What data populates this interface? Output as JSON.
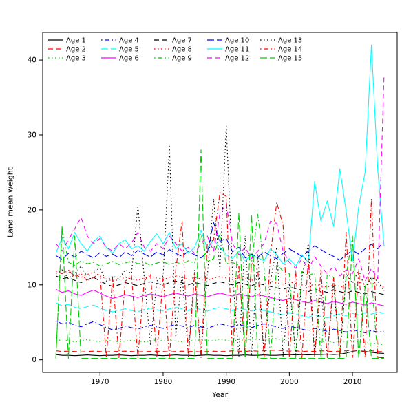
{
  "figure": {
    "background": "#ffffff"
  },
  "chart_data": {
    "type": "line",
    "title": "",
    "xlabel": "Year",
    "ylabel": "Land mean weight",
    "xlim": [
      1963,
      2015
    ],
    "ylim": [
      0,
      42
    ],
    "xticks": [
      1970,
      1980,
      1990,
      2000,
      2010
    ],
    "yticks": [
      0,
      10,
      20,
      30,
      40
    ],
    "grid": false,
    "legend": {
      "position": "top-left",
      "columns": 5,
      "rows": 3,
      "frame": false
    },
    "palette": {
      "black": "#000000",
      "red": "#FF0000",
      "green": "#00CD00",
      "blue": "#0000FF",
      "cyan": "#00FFFF",
      "magenta": "#FF00FF"
    },
    "x": [
      1963,
      1964,
      1965,
      1966,
      1967,
      1968,
      1969,
      1970,
      1971,
      1972,
      1973,
      1974,
      1975,
      1976,
      1977,
      1978,
      1979,
      1980,
      1981,
      1982,
      1983,
      1984,
      1985,
      1986,
      1987,
      1988,
      1989,
      1990,
      1991,
      1992,
      1993,
      1994,
      1995,
      1996,
      1997,
      1998,
      1999,
      2000,
      2001,
      2002,
      2003,
      2004,
      2005,
      2006,
      2007,
      2008,
      2009,
      2010,
      2011,
      2012,
      2013,
      2014,
      2015
    ],
    "series": [
      {
        "name": "Age 1",
        "color": "#000000",
        "style": "solid",
        "values": [
          0.7,
          0.6,
          0.6,
          0.55,
          0.6,
          0.65,
          0.6,
          0.55,
          0.6,
          0.6,
          0.65,
          0.6,
          0.55,
          0.6,
          0.6,
          0.65,
          0.6,
          0.55,
          0.6,
          0.65,
          0.6,
          0.6,
          0.55,
          0.6,
          0.65,
          0.6,
          0.6,
          0.55,
          0.6,
          0.6,
          0.65,
          0.6,
          0.6,
          0.65,
          0.6,
          0.6,
          0.65,
          0.7,
          0.65,
          0.7,
          0.65,
          0.7,
          0.7,
          0.75,
          0.7,
          0.75,
          0.9,
          1.1,
          1.0,
          1.1,
          1.0,
          0.9,
          0.85
        ]
      },
      {
        "name": "Age 2",
        "color": "#FF0000",
        "style": "dashed",
        "values": [
          1.2,
          1.1,
          1.15,
          1.1,
          1.05,
          1.1,
          1.15,
          1.1,
          1.05,
          1.1,
          1.1,
          1.15,
          1.1,
          1.05,
          1.1,
          1.1,
          1.15,
          1.1,
          1.05,
          1.1,
          1.15,
          1.1,
          1.1,
          1.05,
          1.1,
          1.15,
          1.1,
          1.1,
          1.2,
          1.15,
          1.1,
          1.2,
          1.15,
          1.2,
          1.25,
          1.3,
          1.2,
          1.15,
          1.2,
          1.1,
          1.15,
          1.1,
          1.2,
          1.15,
          1.1,
          1.15,
          1.2,
          1.25,
          1.2,
          1.15,
          1.2,
          1.1,
          1.05
        ]
      },
      {
        "name": "Age 3",
        "color": "#00CD00",
        "style": "dotted",
        "values": [
          2.8,
          2.5,
          2.6,
          2.4,
          2.5,
          2.7,
          2.5,
          2.4,
          2.6,
          2.5,
          2.4,
          2.5,
          2.6,
          2.5,
          2.4,
          2.5,
          2.7,
          2.5,
          2.6,
          2.5,
          2.4,
          2.6,
          2.5,
          2.7,
          2.6,
          2.5,
          2.8,
          2.6,
          2.5,
          2.7,
          2.6,
          2.8,
          2.7,
          2.6,
          2.9,
          2.8,
          2.6,
          2.5,
          2.7,
          2.6,
          2.5,
          2.6,
          2.4,
          2.5,
          2.3,
          2.4,
          2.5,
          2.6,
          2.4,
          2.3,
          2.2,
          2.1,
          2.0
        ]
      },
      {
        "name": "Age 4",
        "color": "#0000FF",
        "style": "dashdot",
        "values": [
          5.2,
          4.8,
          5.0,
          4.6,
          4.4,
          4.8,
          5.1,
          4.7,
          4.3,
          4.0,
          4.2,
          4.5,
          4.3,
          4.1,
          4.4,
          4.6,
          4.4,
          4.2,
          4.5,
          4.7,
          4.5,
          4.3,
          4.6,
          4.4,
          4.2,
          4.5,
          4.8,
          4.6,
          4.4,
          4.7,
          4.5,
          4.3,
          4.6,
          4.8,
          4.6,
          4.4,
          4.2,
          4.5,
          4.3,
          4.1,
          3.9,
          4.2,
          4.0,
          3.8,
          4.1,
          3.9,
          3.7,
          4.0,
          3.8,
          3.6,
          3.9,
          3.7,
          3.8
        ]
      },
      {
        "name": "Age 5",
        "color": "#00FFFF",
        "style": "longdash",
        "values": [
          7.6,
          7.2,
          7.4,
          7.0,
          6.8,
          7.1,
          7.3,
          6.9,
          6.6,
          6.4,
          6.6,
          6.8,
          6.6,
          6.4,
          6.7,
          6.9,
          6.7,
          6.5,
          6.8,
          7.0,
          6.8,
          6.6,
          6.9,
          6.7,
          6.5,
          6.8,
          7.0,
          6.8,
          6.6,
          6.9,
          6.7,
          6.5,
          6.8,
          6.6,
          6.4,
          6.2,
          6.0,
          6.3,
          6.1,
          5.9,
          5.7,
          6.0,
          5.8,
          5.6,
          5.9,
          6.1,
          5.9,
          6.2,
          6.0,
          6.3,
          6.1,
          6.4,
          6.2
        ]
      },
      {
        "name": "Age 6",
        "color": "#FF00FF",
        "style": "solid",
        "values": [
          9.4,
          9.0,
          9.2,
          8.8,
          8.6,
          9.0,
          9.3,
          8.9,
          8.5,
          8.2,
          8.4,
          8.7,
          8.5,
          8.3,
          8.6,
          8.8,
          8.6,
          8.4,
          8.7,
          8.9,
          8.7,
          8.5,
          8.8,
          8.6,
          8.4,
          8.7,
          8.9,
          8.7,
          8.5,
          8.8,
          8.6,
          8.4,
          8.7,
          8.5,
          8.3,
          8.1,
          7.9,
          8.2,
          8.0,
          7.8,
          7.6,
          7.9,
          7.7,
          7.5,
          7.8,
          7.6,
          7.4,
          7.7,
          7.5,
          7.3,
          7.6,
          7.4,
          7.2
        ]
      },
      {
        "name": "Age 7",
        "color": "#000000",
        "style": "dashed",
        "values": [
          11.2,
          10.8,
          11.0,
          10.6,
          10.3,
          10.7,
          11.0,
          10.5,
          10.1,
          9.8,
          10.0,
          10.3,
          10.1,
          9.9,
          10.2,
          10.4,
          10.2,
          10.0,
          10.3,
          10.5,
          10.3,
          10.0,
          10.3,
          10.1,
          9.9,
          10.2,
          10.4,
          10.2,
          10.0,
          10.3,
          10.1,
          9.9,
          10.2,
          10.0,
          9.8,
          9.6,
          9.4,
          9.7,
          9.5,
          9.3,
          9.1,
          9.4,
          9.2,
          9.0,
          9.3,
          9.1,
          8.9,
          9.2,
          9.0,
          8.8,
          9.1,
          8.9,
          8.7
        ]
      },
      {
        "name": "Age 8",
        "color": "#FF0000",
        "style": "dotted",
        "values": [
          11.9,
          11.5,
          11.7,
          11.3,
          11.0,
          11.4,
          11.7,
          11.2,
          10.8,
          10.5,
          10.7,
          11.0,
          10.8,
          10.6,
          10.9,
          11.1,
          10.9,
          10.7,
          11.0,
          11.2,
          11.0,
          10.7,
          11.0,
          10.8,
          10.6,
          10.9,
          11.1,
          10.9,
          10.7,
          11.0,
          10.8,
          10.6,
          10.9,
          10.7,
          10.5,
          10.3,
          10.1,
          10.4,
          10.2,
          10.0,
          9.8,
          10.1,
          9.9,
          9.7,
          10.0,
          9.8,
          9.6,
          9.9,
          10.4,
          10.0,
          10.3,
          9.9,
          9.7
        ]
      },
      {
        "name": "Age 9",
        "color": "#00CD00",
        "style": "dashdot",
        "values": [
          0.3,
          17.5,
          13.0,
          12.6,
          13.2,
          12.8,
          13.0,
          12.5,
          12.8,
          13.1,
          12.7,
          12.9,
          13.2,
          12.8,
          13.0,
          12.6,
          12.9,
          13.1,
          12.7,
          13.0,
          12.8,
          13.2,
          12.9,
          16.8,
          13.1,
          13.5,
          16.9,
          12.8,
          13.0,
          12.6,
          0.3,
          13.0,
          19.4,
          12.2,
          0.3,
          12.8,
          11.8,
          11.5,
          0.3,
          11.8,
          11.2,
          11.6,
          0.3,
          11.4,
          11.0,
          0.3,
          11.2,
          16.5,
          0.3,
          9.8,
          11.0,
          0.3,
          0.3
        ]
      },
      {
        "name": "Age 10",
        "color": "#0000FF",
        "style": "longdash",
        "values": [
          13.9,
          13.4,
          14.2,
          13.7,
          14.5,
          14.0,
          13.6,
          14.3,
          13.8,
          14.1,
          13.6,
          14.4,
          13.9,
          14.6,
          14.1,
          13.7,
          14.4,
          14.0,
          14.7,
          14.2,
          13.8,
          14.5,
          14.0,
          13.6,
          14.3,
          18.3,
          15.8,
          16.2,
          14.4,
          15.0,
          13.6,
          14.1,
          13.7,
          14.4,
          13.9,
          13.5,
          14.2,
          14.8,
          14.3,
          13.8,
          14.5,
          15.2,
          14.7,
          14.2,
          13.8,
          13.3,
          14.0,
          14.6,
          14.1,
          14.8,
          15.4,
          14.8,
          15.8
        ]
      },
      {
        "name": "Age 11",
        "color": "#00FFFF",
        "style": "solid",
        "values": [
          14.2,
          16.3,
          14.8,
          17.0,
          15.5,
          14.5,
          15.8,
          16.5,
          15.0,
          14.2,
          15.5,
          16.0,
          14.8,
          15.2,
          14.5,
          15.8,
          16.8,
          15.5,
          17.0,
          14.8,
          15.5,
          14.2,
          15.0,
          17.3,
          14.8,
          16.0,
          15.0,
          14.0,
          13.5,
          14.5,
          13.2,
          14.0,
          13.6,
          13.2,
          14.8,
          14.0,
          12.8,
          13.5,
          12.5,
          14.0,
          13.0,
          23.8,
          18.5,
          21.2,
          17.8,
          25.5,
          19.8,
          13.2,
          20.5,
          25.0,
          42.0,
          25.3,
          15.2
        ]
      },
      {
        "name": "Age 12",
        "color": "#FF00FF",
        "style": "dashed",
        "values": [
          15.5,
          14.5,
          16.0,
          17.5,
          19.0,
          16.5,
          15.5,
          16.2,
          15.0,
          14.5,
          15.5,
          14.8,
          15.6,
          17.0,
          15.0,
          14.5,
          15.5,
          14.8,
          16.5,
          15.5,
          14.5,
          15.0,
          14.2,
          15.5,
          16.5,
          14.5,
          19.5,
          20.8,
          15.5,
          14.0,
          15.0,
          13.5,
          14.5,
          15.5,
          18.5,
          18.2,
          14.5,
          13.0,
          12.2,
          13.5,
          12.0,
          13.8,
          12.5,
          11.5,
          12.5,
          11.2,
          12.0,
          11.5,
          13.5,
          10.5,
          12.2,
          10.8,
          38.0
        ]
      },
      {
        "name": "Age 13",
        "color": "#000000",
        "style": "dotted",
        "values": [
          11.5,
          12.0,
          10.8,
          11.5,
          12.5,
          11.0,
          11.8,
          12.2,
          10.5,
          11.2,
          10.8,
          12.0,
          11.5,
          20.6,
          11.0,
          2.0,
          10.5,
          11.2,
          28.5,
          3.0,
          11.5,
          0.5,
          12.0,
          0.5,
          11.2,
          21.5,
          12.0,
          31.2,
          11.5,
          0.5,
          16.5,
          0.5,
          14.0,
          0.5,
          10.5,
          15.0,
          0.5,
          10.2,
          0.5,
          11.0,
          15.5,
          0.5,
          9.5,
          0.5,
          10.0,
          0.5,
          11.5,
          10.2,
          12.0,
          9.5,
          11.0,
          10.5,
          9.2
        ]
      },
      {
        "name": "Age 14",
        "color": "#FF0000",
        "style": "dashdot",
        "values": [
          11.8,
          11.5,
          12.0,
          11.0,
          11.5,
          10.5,
          11.0,
          11.5,
          0.3,
          11.0,
          0.3,
          10.5,
          11.2,
          0.3,
          10.5,
          11.5,
          0.3,
          11.0,
          0.3,
          12.0,
          18.5,
          0.3,
          11.5,
          0.3,
          15.5,
          16.0,
          22.3,
          21.8,
          0.3,
          12.5,
          0.3,
          13.0,
          12.0,
          0.3,
          14.0,
          21.0,
          18.0,
          0.3,
          12.0,
          0.3,
          13.5,
          0.3,
          12.0,
          0.3,
          11.0,
          0.3,
          17.0,
          0.3,
          12.0,
          0.3,
          21.5,
          0.3,
          0.3
        ]
      },
      {
        "name": "Age 15",
        "color": "#00CD00",
        "style": "longdash",
        "values": [
          0.2,
          17.9,
          0.2,
          16.5,
          0.2,
          0.2,
          0.2,
          0.2,
          0.2,
          0.2,
          0.2,
          0.2,
          0.2,
          0.2,
          0.2,
          0.2,
          0.2,
          0.2,
          0.2,
          0.2,
          0.2,
          0.2,
          0.2,
          28.0,
          0.2,
          0.2,
          0.2,
          0.2,
          0.2,
          19.6,
          0.2,
          19.4,
          0.2,
          0.2,
          0.2,
          0.2,
          0.2,
          0.2,
          0.2,
          0.2,
          0.2,
          0.2,
          0.2,
          0.2,
          0.2,
          0.2,
          0.2,
          16.2,
          0.2,
          9.9,
          0.2,
          0.2,
          0.2
        ]
      }
    ]
  }
}
